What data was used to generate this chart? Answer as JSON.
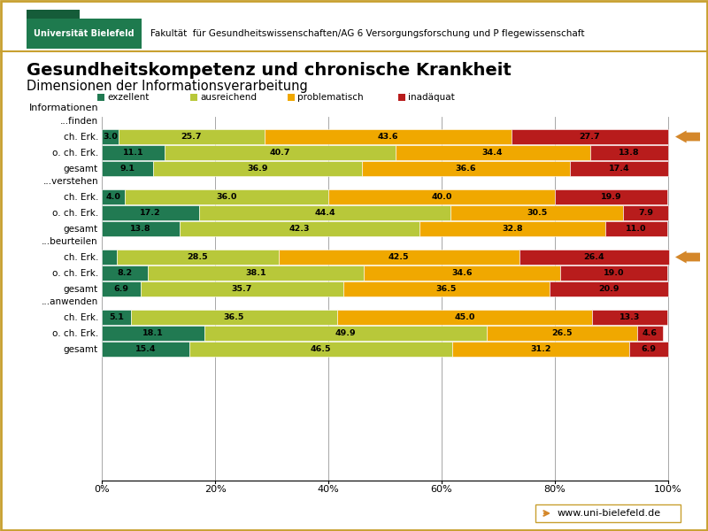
{
  "title": "Gesundheitskompetenz und chronische Krankheit",
  "subtitle": "Dimensionen der Informationsverarbeitung",
  "header_text": "Fakultät  für Gesundheitswissenschaften/AG 6 Versorgungsforschung und P flegewissenschaft",
  "legend_labels": [
    "exzellent",
    "ausreichend",
    "problematisch",
    "inadäquat"
  ],
  "colors": [
    "#217a52",
    "#b8c83a",
    "#f0a800",
    "#b81c1c"
  ],
  "group_labels": [
    "...finden",
    "...verstehen",
    "...beurteilen",
    "...anwenden"
  ],
  "row_labels": [
    "ch. Erk.",
    "o. ch. Erk.",
    "gesamt"
  ],
  "section_label": "Informationen",
  "data": {
    "...finden": {
      "ch. Erk.": [
        3.0,
        25.7,
        43.6,
        27.7
      ],
      "o. ch. Erk.": [
        11.1,
        40.7,
        34.4,
        13.8
      ],
      "gesamt": [
        9.1,
        36.9,
        36.6,
        17.4
      ]
    },
    "...verstehen": {
      "ch. Erk.": [
        4.0,
        36.0,
        40.0,
        19.9
      ],
      "o. ch. Erk.": [
        17.2,
        44.4,
        30.5,
        7.9
      ],
      "gesamt": [
        13.8,
        42.3,
        32.8,
        11.0
      ]
    },
    "...beurteilen": {
      "ch. Erk.": [
        2.7,
        28.5,
        42.5,
        26.4
      ],
      "o. ch. Erk.": [
        8.2,
        38.1,
        34.6,
        19.0
      ],
      "gesamt": [
        6.9,
        35.7,
        36.5,
        20.9
      ]
    },
    "...anwenden": {
      "ch. Erk.": [
        5.1,
        36.5,
        45.0,
        13.3
      ],
      "o. ch. Erk.": [
        18.1,
        49.9,
        26.5,
        4.6
      ],
      "gesamt": [
        15.4,
        46.5,
        31.2,
        6.9
      ]
    }
  },
  "bg_color": "#ffffff",
  "outer_border_color": "#c8a030",
  "header_border_color": "#c8a030",
  "arrow_color": "#d4872a",
  "url_text": "www.uni-bielefeld.de",
  "arrow_rows": [
    "...finden_ch. Erk.",
    "...beurteilen_ch. Erk."
  ],
  "logo_green": "#1e7a4e",
  "logo_dark_green": "#155c39",
  "logo_text": "Universität Bielefeld",
  "logo_text_color": "#ffffff"
}
